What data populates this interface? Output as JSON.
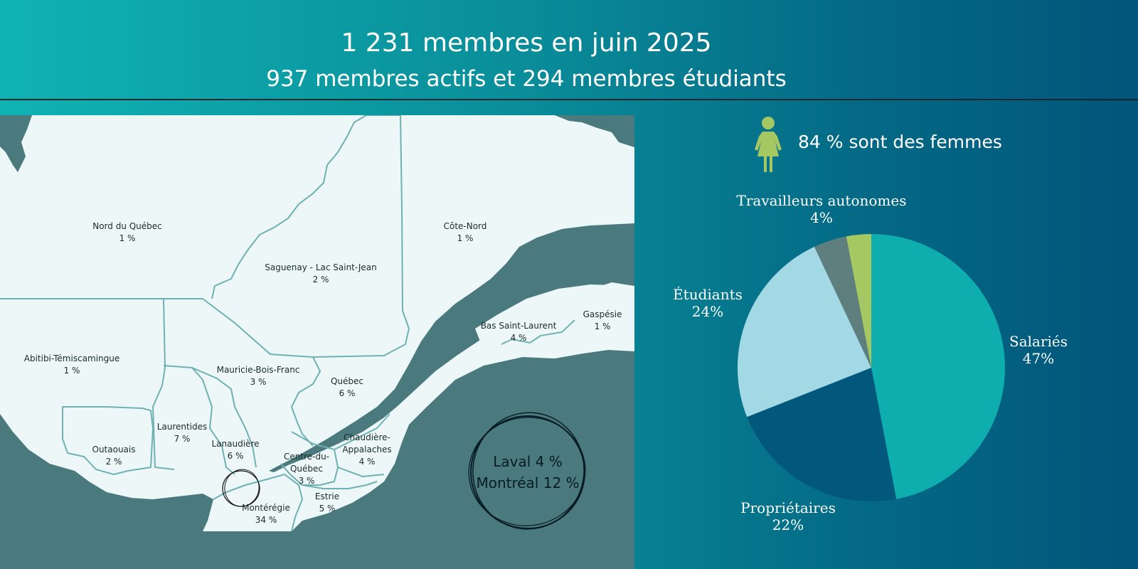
{
  "header": {
    "title": "1 231 membres en juin 2025",
    "subtitle": "937 membres actifs et 294 membres étudiants"
  },
  "map": {
    "regions": [
      {
        "name": "Nord du Québec",
        "pct": "1 %"
      },
      {
        "name": "Côte-Nord",
        "pct": "1 %"
      },
      {
        "name": "Saguenay - Lac Saint-Jean",
        "pct": "2 %"
      },
      {
        "name": "Gaspésie",
        "pct": "1 %"
      },
      {
        "name": "Bas Saint-Laurent",
        "pct": "4 %"
      },
      {
        "name": "Abitibi-Témiscamingue",
        "pct": "1 %"
      },
      {
        "name": "Mauricie-Bois-Franc",
        "pct": "3 %"
      },
      {
        "name": "Québec",
        "pct": "6 %"
      },
      {
        "name": "Laurentides",
        "pct": "7 %"
      },
      {
        "name": "Outaouais",
        "pct": "2 %"
      },
      {
        "name": "Lanaudière",
        "pct": "6 %"
      },
      {
        "name": "Chaudière-\nAppalaches",
        "pct": "4 %"
      },
      {
        "name": "Centre-du-\nQuébec",
        "pct": "3 %"
      },
      {
        "name": "Estrie",
        "pct": "5 %"
      },
      {
        "name": "Montérégie",
        "pct": "34 %"
      }
    ],
    "laval": "Laval 4 %",
    "montreal": "Montréal 12 %",
    "colors": {
      "land": "#edf7f7",
      "border": "#6fb1b3",
      "water": "#4a7a7d"
    }
  },
  "women": {
    "text": "84 % sont des femmes",
    "color": "#a6c863"
  },
  "chart_data": {
    "type": "pie",
    "slices": [
      {
        "label": "Salariés",
        "value": 47,
        "value_label": "47%",
        "color": "#0eaeae"
      },
      {
        "label": "Propriétaires",
        "value": 22,
        "value_label": "22%",
        "color": "#02587c"
      },
      {
        "label": "Étudiants",
        "value": 24,
        "value_label": "24%",
        "color": "#a3d8e5"
      },
      {
        "label": "Travailleurs autonomes",
        "value": 4,
        "value_label": "4%",
        "color": "#5f7e7e"
      },
      {
        "label": "",
        "value": 3,
        "value_label": "",
        "color": "#a6c863"
      }
    ]
  }
}
